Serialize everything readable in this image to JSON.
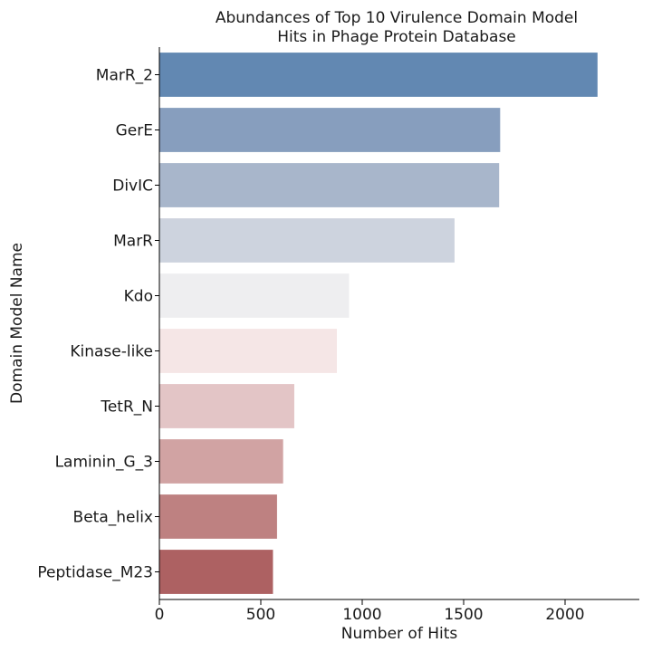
{
  "chart_data": {
    "type": "bar",
    "orientation": "horizontal",
    "title_lines": [
      "Abundances of Top 10 Virulence Domain Model",
      "Hits in Phage Protein Database"
    ],
    "xlabel": "Number of Hits",
    "ylabel": "Domain Model Name",
    "categories": [
      "MarR_2",
      "GerE",
      "DivIC",
      "MarR",
      "Kdo",
      "Kinase-like",
      "TetR_N",
      "Laminin_G_3",
      "Beta_helix",
      "Peptidase_M23"
    ],
    "values": [
      2160,
      1680,
      1675,
      1455,
      935,
      875,
      665,
      610,
      580,
      560
    ],
    "colors": [
      "#6288b2",
      "#879ebe",
      "#a8b6cb",
      "#cdd3de",
      "#eeeef0",
      "#f5e6e6",
      "#e3c5c6",
      "#d1a3a3",
      "#be8181",
      "#ad6162"
    ],
    "xlim": [
      0,
      2250
    ],
    "xticks": [
      0,
      500,
      1000,
      1500,
      2000
    ],
    "xtick_labels": [
      "0",
      "500",
      "1000",
      "1500",
      "2000"
    ],
    "grid": false,
    "legend": "none"
  }
}
